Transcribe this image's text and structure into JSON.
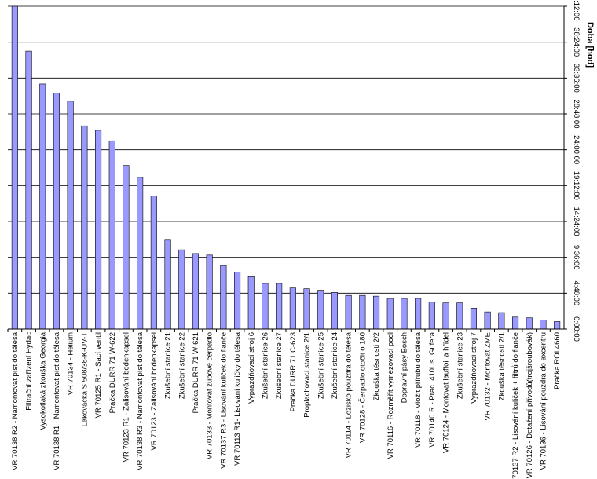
{
  "chart_data": {
    "type": "bar",
    "title": "",
    "xlabel": "",
    "ylabel": "Doba [hod]",
    "y_axis_position": "right",
    "y_tick_labels": [
      "0:00:00",
      "4:48:00",
      "9:36:00",
      "14:24:00",
      "19:12:00",
      "24:00:00",
      "28:48:00",
      "33:36:00",
      "38:24:00",
      "43:12:00"
    ],
    "ylim": [
      0,
      43.2
    ],
    "grid": true,
    "bar_color": "#9999ff",
    "categories": [
      "VR 70138 R2 - Namontovat píst do tělesa",
      "Filtrační zařízení Hydac",
      "Vysokotlaká zkouška Georgia",
      "VR 70138 R1 - Namontovat píst do tělesa",
      "VR 70134 - Helium",
      "Lakovačka S 508/38-K-UV-T",
      "VR 70125 R1 - Sací ventil",
      "Pračka DURR 71 W-622",
      "VR 70123 R1 - Zalisování bodenkapsel",
      "VR 70138 R3 - Namontovat píst do tělesa",
      "VR 70123 - Zalisování bodenkapsel",
      "Zkušební stanice 21",
      "Zkušební stanice 22",
      "Pračka DURR 71 W-621",
      "VR 70133 - Montovat zubové čerpadlo",
      "VR 70137 R3 - Lisování kuliček do flanče",
      "VR 70113 R1- Lisování kuličky do tělesa",
      "Vyprazdňovací stroj 6",
      "Zkušební stanice 26",
      "Zkušební stanice 27",
      "Pračka DURR 71 C-623",
      "Proplachovací stanice 2/1",
      "Zkušební stanice 25",
      "Zkušební stanice 24",
      "VR 70114 - Ložisko pouzdra do tělesa",
      "VR 70128 - Čerpadlo otočit o 180",
      "Zkouška těsnosti 2/2",
      "VR 70116 - Rozměřit vymezovací podl",
      "Dopravní pásy Bosch",
      "VR 70118 - Vložit přírubu do tělesa",
      "VR 70140 R - Prac. 410Us. Gufera",
      "VR 70124 - Montovat lauffoil a hřídel",
      "Zkušební stanice 23",
      "Vyprazdňovací stroj 7",
      "VR 70132 - Montovat ZME",
      "Zkouška těsnosti 2/1",
      "70137 R2 - Lisování kuliček + filtrů do flanče",
      "VR 70126 - Dotažení přívodů(trojšroubovák)",
      "VR 70136 - Lisování pouzdra do excentru",
      "Pračka ROI 4660"
    ],
    "values": [
      43.2,
      37.2,
      32.8,
      31.6,
      30.5,
      27.2,
      26.6,
      25.2,
      21.9,
      20.3,
      17.8,
      11.9,
      10.6,
      10.1,
      9.9,
      8.5,
      7.6,
      7.0,
      6.1,
      6.1,
      5.5,
      5.4,
      5.2,
      4.9,
      4.5,
      4.5,
      4.4,
      4.1,
      4.1,
      4.1,
      3.6,
      3.5,
      3.5,
      2.8,
      2.3,
      2.2,
      1.6,
      1.5,
      1.2,
      1.0
    ]
  }
}
